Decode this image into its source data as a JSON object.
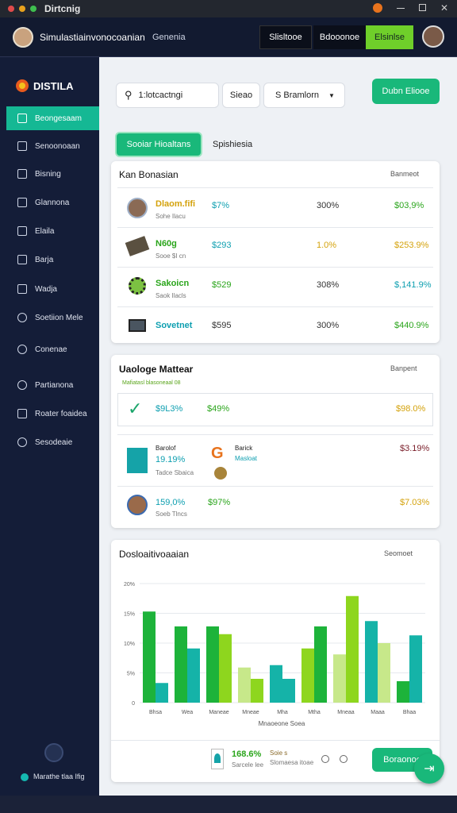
{
  "window": {
    "title": "Dirtcnig"
  },
  "header": {
    "title": "Simulastiainvonocoanian",
    "tab": "Genenia",
    "buttons": [
      "Slisltooe",
      "Bdooonoe",
      "Elsinlse"
    ]
  },
  "sidebar": {
    "brand": "DISTILA",
    "items": [
      "Beongesaam",
      "Senoonoaan",
      "Bisning",
      "Glannona",
      "Elaila",
      "Barja",
      "Wadja",
      "Soetiion Mele",
      "Conenae",
      "Partianona",
      "Roater foaidea",
      "Sesodeaie"
    ],
    "footer": "Marathe tlaa Ifig"
  },
  "toolbar": {
    "search": "1:lotcactngi",
    "filter": "Sieao",
    "dropdown": "S Bramlorn",
    "action": "Dubn Eliooe"
  },
  "tabs": [
    "Sooiar Hioaltans",
    "Spishiesia"
  ],
  "card1": {
    "title": "Kan Bonasian",
    "menu": "Banmeot",
    "rows": [
      {
        "name": "Dlaom.fifi",
        "sub": "Sohe Ilacu",
        "a": "$7%",
        "b": "300%",
        "c": "$03,9%"
      },
      {
        "name": "N60g",
        "sub": "Sooe $I cn",
        "a": "$293",
        "b": "1.0%",
        "c": "$253.9%"
      },
      {
        "name": "Sakoicn",
        "sub": "Saok Ilacls",
        "a": "$529",
        "b": "308%",
        "c": "$,141.9%"
      },
      {
        "name": "Sovetnet",
        "a": "$595",
        "b": "300%",
        "c": "$440.9%"
      }
    ]
  },
  "card2": {
    "title": "Uaologe Mattear",
    "menu": "Banpent",
    "subtitle": "Mafiatasl blasoneaal 08",
    "rows": [
      {
        "a": "$9L3%",
        "b": "$49%",
        "c": "$98.0%"
      },
      {
        "label": "Barolof",
        "a": "19.19%",
        "sub": "Tadce Sbaica",
        "label2": "Barick",
        "b": "Masloat",
        "c": "$3.19%"
      },
      {
        "a": "159,0%",
        "sub": "Soeb Tlncs",
        "b": "$97%",
        "c": "$7.03%"
      }
    ]
  },
  "chart": {
    "type": "bar",
    "title": "Dosloaitivoaaian",
    "menu": "Seomoet",
    "x_title": "Mnaoeone Soea",
    "ylim": [
      0,
      20
    ],
    "yticks": [
      0,
      {
        "value": 5,
        "label": "5%"
      },
      {
        "value": 10,
        "label": "10%"
      },
      {
        "value": 15,
        "label": "15%"
      },
      {
        "value": 20,
        "label": "20%"
      }
    ],
    "grid": true,
    "groups": [
      {
        "label": "Bhsa",
        "bars": [
          {
            "value": 15.3,
            "color": "#1db33a"
          },
          {
            "value": 3.3,
            "color": "#15b3a8"
          }
        ]
      },
      {
        "label": "Wea",
        "bars": [
          {
            "value": 12.8,
            "color": "#1db33a"
          },
          {
            "value": 9.1,
            "color": "#15b3a8"
          }
        ]
      },
      {
        "label": "Maneae",
        "bars": [
          {
            "value": 12.8,
            "color": "#1db33a"
          },
          {
            "value": 11.5,
            "color": "#8ed61e"
          }
        ]
      },
      {
        "label": "Mneae",
        "bars": [
          {
            "value": 5.9,
            "color": "#c7e88a"
          },
          {
            "value": 4.0,
            "color": "#8ed61e"
          }
        ]
      },
      {
        "label": "Mha",
        "bars": [
          {
            "value": 6.3,
            "color": "#15b3a8"
          },
          {
            "value": 4.0,
            "color": "#15b3a8"
          }
        ]
      },
      {
        "label": "Mtha",
        "bars": [
          {
            "value": 9.1,
            "color": "#8ed61e"
          },
          {
            "value": 12.8,
            "color": "#1db33a"
          }
        ]
      },
      {
        "label": "Mneaa",
        "bars": [
          {
            "value": 8.1,
            "color": "#c7e88a"
          },
          {
            "value": 17.9,
            "color": "#8ed61e"
          }
        ]
      },
      {
        "label": "Maaa",
        "bars": [
          {
            "value": 13.7,
            "color": "#15b3a8"
          },
          {
            "value": 10,
            "color": "#c7e88a"
          }
        ]
      },
      {
        "label": "Bhaa",
        "bars": [
          {
            "value": 3.6,
            "color": "#1db33a"
          },
          {
            "value": 11.3,
            "color": "#15b3a8"
          }
        ]
      }
    ],
    "footer": {
      "value": "168.6%",
      "sub": "Sarcele lee",
      "note": "Soie s",
      "note2": "Slomaesa itoae",
      "button": "Boraonoe"
    }
  }
}
